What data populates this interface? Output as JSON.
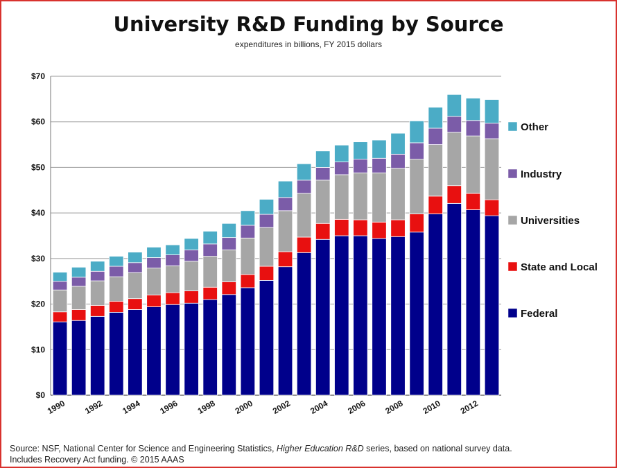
{
  "title": "University R&D Funding by Source",
  "subtitle": "expenditures in billions, FY 2015 dollars",
  "source": {
    "part1": "Source: NSF, National Center for Science and Engineering Statistics, ",
    "series_name": "Higher Education R&D",
    "part2": " series, based on national survey data.",
    "line2": "Includes Recovery Act funding. © 2015 AAAS"
  },
  "chart_data": {
    "type": "bar",
    "stacked": true,
    "title": "University R&D Funding by Source",
    "subtitle": "expenditures in billions, FY 2015 dollars",
    "xlabel": "",
    "ylabel": "",
    "ylim": [
      0,
      70
    ],
    "yticks": [
      0,
      10,
      20,
      30,
      40,
      50,
      60,
      70
    ],
    "ytick_labels": [
      "$0",
      "$10",
      "$20",
      "$30",
      "$40",
      "$50",
      "$60",
      "$70"
    ],
    "grid": true,
    "legend_position": "right",
    "categories": [
      1990,
      1991,
      1992,
      1993,
      1994,
      1995,
      1996,
      1997,
      1998,
      1999,
      2000,
      2001,
      2002,
      2003,
      2004,
      2005,
      2006,
      2007,
      2008,
      2009,
      2010,
      2011,
      2012,
      2013
    ],
    "xtick_labels": [
      "1990",
      "1992",
      "1994",
      "1996",
      "1998",
      "2000",
      "2002",
      "2004",
      "2006",
      "2008",
      "2010",
      "2012"
    ],
    "series": [
      {
        "name": "Federal",
        "color": "#00008b",
        "values": [
          16.1,
          16.4,
          17.3,
          18.2,
          18.8,
          19.4,
          19.9,
          20.2,
          21.0,
          22.1,
          23.6,
          25.2,
          28.2,
          31.3,
          34.2,
          35.0,
          35.0,
          34.4,
          34.8,
          35.8,
          39.8,
          42.1,
          40.7,
          39.4
        ]
      },
      {
        "name": "State and Local",
        "color": "#e81010",
        "values": [
          2.2,
          2.4,
          2.4,
          2.4,
          2.4,
          2.6,
          2.6,
          2.7,
          2.7,
          2.8,
          2.9,
          3.1,
          3.3,
          3.4,
          3.5,
          3.6,
          3.5,
          3.6,
          3.7,
          4.0,
          3.9,
          3.9,
          3.6,
          3.5
        ]
      },
      {
        "name": "Universities",
        "color": "#a6a6a6",
        "values": [
          4.8,
          5.1,
          5.4,
          5.4,
          5.7,
          5.9,
          5.9,
          6.5,
          6.8,
          7.0,
          8.0,
          8.5,
          9.0,
          9.6,
          9.5,
          9.8,
          10.3,
          10.8,
          11.3,
          12.0,
          11.3,
          11.7,
          12.6,
          13.4
        ]
      },
      {
        "name": "Industry",
        "color": "#7b5ca8",
        "values": [
          1.9,
          2.0,
          2.1,
          2.3,
          2.2,
          2.3,
          2.4,
          2.5,
          2.7,
          2.7,
          2.8,
          2.9,
          2.9,
          2.9,
          2.8,
          2.8,
          3.0,
          3.2,
          3.1,
          3.6,
          3.6,
          3.5,
          3.4,
          3.4
        ]
      },
      {
        "name": "Other",
        "color": "#4bacc6",
        "values": [
          2.0,
          2.2,
          2.2,
          2.2,
          2.3,
          2.3,
          2.2,
          2.5,
          2.8,
          3.1,
          3.2,
          3.3,
          3.6,
          3.6,
          3.6,
          3.7,
          3.8,
          4.0,
          4.6,
          4.8,
          4.6,
          4.8,
          4.9,
          5.2
        ]
      }
    ],
    "legend_order": [
      "Other",
      "Industry",
      "Universities",
      "State and Local",
      "Federal"
    ]
  }
}
